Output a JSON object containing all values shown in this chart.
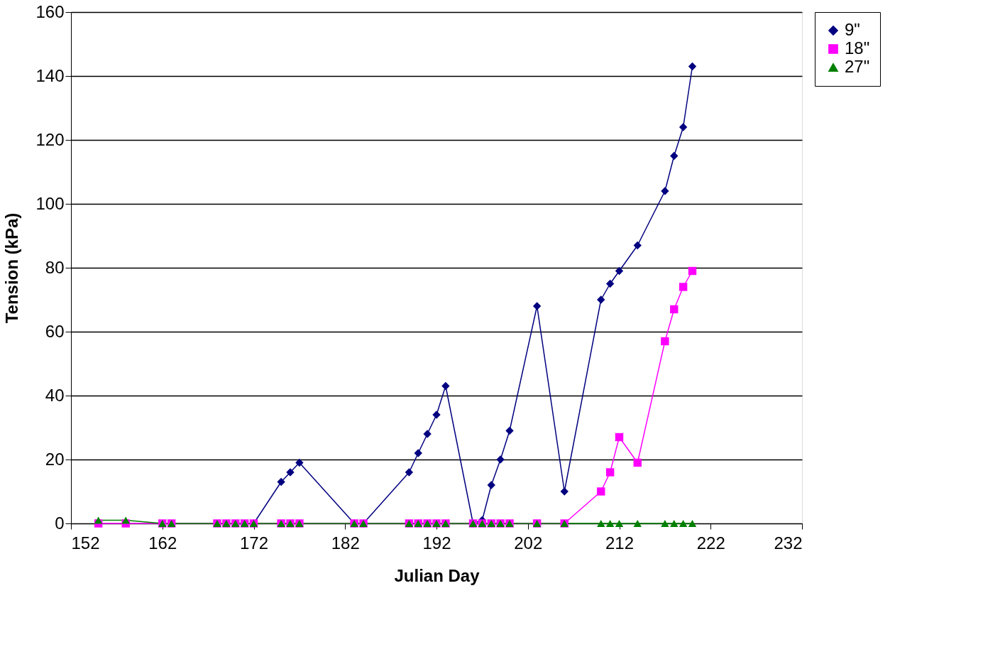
{
  "chart_data": {
    "type": "line",
    "xlabel": "Julian Day",
    "ylabel": "Tension (kPa)",
    "x": [
      155,
      158,
      162,
      163,
      168,
      169,
      170,
      171,
      172,
      175,
      176,
      177,
      183,
      184,
      189,
      190,
      191,
      192,
      193,
      196,
      197,
      198,
      199,
      200,
      203,
      206,
      210,
      211,
      212,
      214,
      217,
      218,
      219,
      220
    ],
    "series": [
      {
        "name": "9\"",
        "color": "#000080",
        "marker": "diamond",
        "values": [
          null,
          null,
          null,
          null,
          null,
          null,
          null,
          null,
          0,
          13,
          16,
          19,
          0,
          0,
          16,
          22,
          28,
          34,
          43,
          0,
          1,
          12,
          20,
          29,
          68,
          10,
          70,
          75,
          79,
          87,
          104,
          115,
          124,
          143
        ]
      },
      {
        "name": "18\"",
        "color": "#ff00ff",
        "marker": "square",
        "values": [
          0,
          0,
          0,
          0,
          0,
          0,
          0,
          0,
          0,
          0,
          0,
          0,
          0,
          0,
          0,
          0,
          0,
          0,
          0,
          0,
          0,
          0,
          0,
          0,
          0,
          0,
          10,
          16,
          27,
          19,
          57,
          67,
          74,
          79
        ]
      },
      {
        "name": "27\"",
        "color": "#008000",
        "marker": "triangle",
        "values": [
          1,
          1,
          0,
          0,
          0,
          0,
          0,
          0,
          0,
          0,
          0,
          0,
          0,
          0,
          0,
          0,
          0,
          0,
          0,
          0,
          0,
          0,
          0,
          0,
          0,
          0,
          0,
          0,
          0,
          0,
          0,
          0,
          0,
          0
        ]
      }
    ],
    "xlim": [
      152,
      232
    ],
    "xticks": [
      152,
      162,
      172,
      182,
      192,
      202,
      212,
      222,
      232
    ],
    "ylim": [
      0,
      160
    ],
    "yticks": [
      0,
      20,
      40,
      60,
      80,
      100,
      120,
      140,
      160
    ],
    "grid": "y",
    "legend": "right",
    "line_style": "solid"
  }
}
